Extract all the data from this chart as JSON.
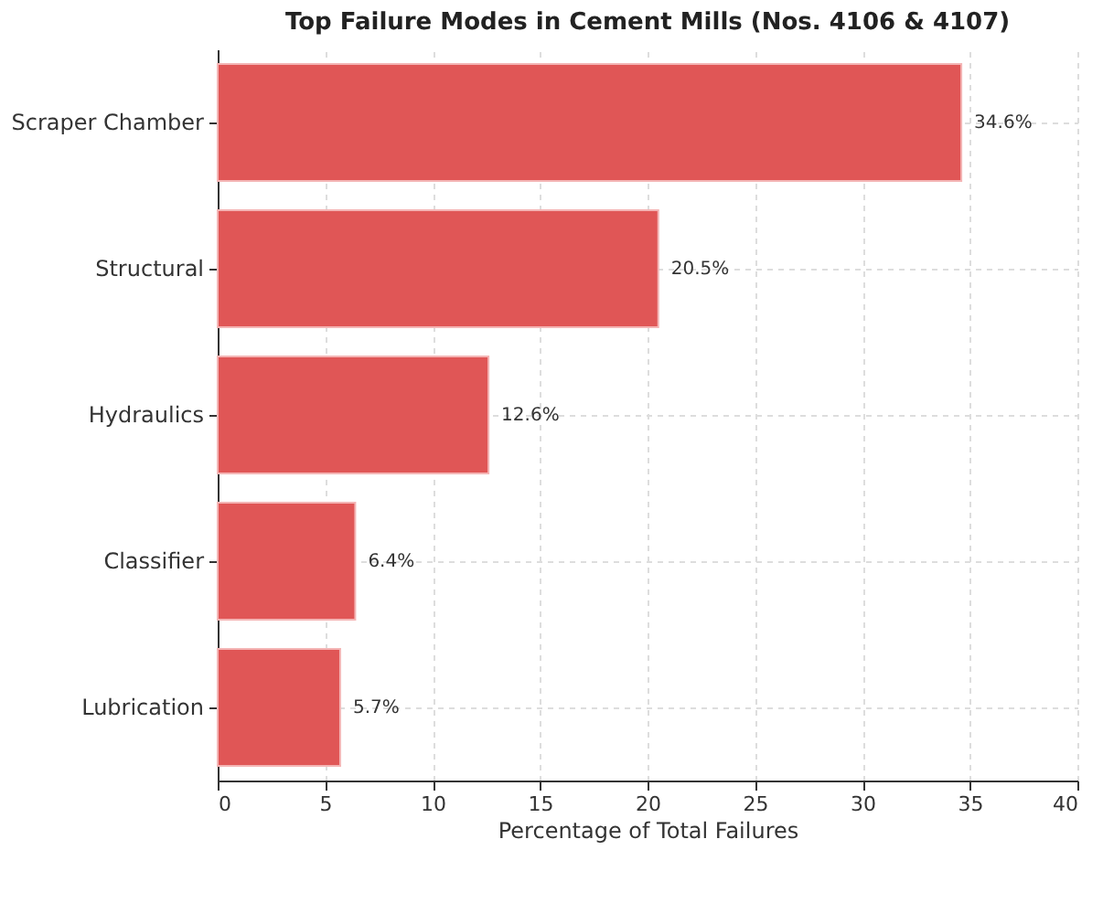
{
  "chart_data": {
    "type": "bar",
    "orientation": "horizontal",
    "title": "Top Failure Modes in Cement Mills (Nos. 4106 & 4107)",
    "xlabel": "Percentage of Total Failures",
    "categories": [
      "Scraper Chamber",
      "Structural",
      "Hydraulics",
      "Classifier",
      "Lubrication"
    ],
    "values": [
      34.6,
      20.5,
      12.6,
      6.4,
      5.7
    ],
    "value_labels": [
      "34.6%",
      "20.5%",
      "12.6%",
      "6.4%",
      "5.7%"
    ],
    "color": "#e05656",
    "xlim": [
      0,
      40
    ],
    "xticks": [
      0,
      5,
      10,
      15,
      20,
      25,
      30,
      35,
      40
    ],
    "grid": true
  }
}
